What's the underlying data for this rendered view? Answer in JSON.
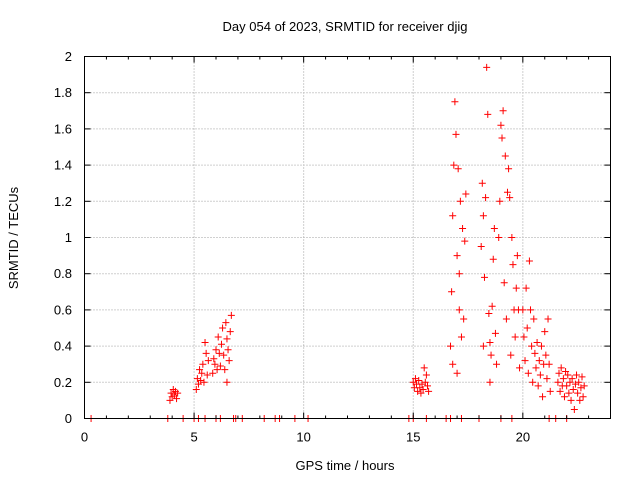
{
  "chart_data": {
    "type": "scatter",
    "title": "Day 054 of 2023, SRMTID for receiver djig",
    "xlabel": "GPS time / hours",
    "ylabel": "SRMTID / TECUs",
    "xlim": [
      0,
      24
    ],
    "ylim": [
      0,
      2
    ],
    "xticks": [
      0,
      5,
      10,
      15,
      20
    ],
    "xtick_labels": [
      "0",
      "5",
      "10",
      "15",
      "20"
    ],
    "yticks": [
      0,
      0.2,
      0.4,
      0.6,
      0.8,
      1,
      1.2,
      1.4,
      1.6,
      1.8,
      2
    ],
    "ytick_labels": [
      "0",
      "0.2",
      "0.4",
      "0.6",
      "0.8",
      "1",
      "1.2",
      "1.4",
      "1.6",
      "1.8",
      "2"
    ],
    "grid": true,
    "marker": "+",
    "color": "#ff0000",
    "series": [
      {
        "name": "SRMTID",
        "points": [
          [
            0.3,
            0.0
          ],
          [
            3.8,
            0.0
          ],
          [
            4.5,
            0.0
          ],
          [
            5.0,
            0.0
          ],
          [
            5.2,
            0.0
          ],
          [
            5.5,
            0.0
          ],
          [
            6.0,
            0.0
          ],
          [
            6.2,
            0.0
          ],
          [
            6.8,
            0.0
          ],
          [
            6.9,
            0.0
          ],
          [
            7.2,
            0.0
          ],
          [
            8.2,
            0.0
          ],
          [
            8.7,
            0.0
          ],
          [
            8.9,
            0.0
          ],
          [
            9.6,
            0.0
          ],
          [
            10.2,
            0.0
          ],
          [
            14.8,
            0.0
          ],
          [
            15.0,
            0.0
          ],
          [
            15.6,
            0.0
          ],
          [
            16.5,
            0.0
          ],
          [
            16.7,
            0.0
          ],
          [
            17.2,
            0.0
          ],
          [
            18.0,
            0.0
          ],
          [
            19.0,
            0.0
          ],
          [
            19.5,
            0.0
          ],
          [
            21.2,
            0.0
          ],
          [
            21.5,
            0.0
          ],
          [
            22.0,
            0.0
          ],
          [
            3.9,
            0.1
          ],
          [
            3.95,
            0.14
          ],
          [
            4.0,
            0.12
          ],
          [
            4.05,
            0.16
          ],
          [
            4.1,
            0.13
          ],
          [
            4.15,
            0.15
          ],
          [
            4.2,
            0.11
          ],
          [
            4.25,
            0.14
          ],
          [
            5.1,
            0.16
          ],
          [
            5.15,
            0.22
          ],
          [
            5.2,
            0.19
          ],
          [
            5.25,
            0.27
          ],
          [
            5.3,
            0.21
          ],
          [
            5.35,
            0.25
          ],
          [
            5.4,
            0.3
          ],
          [
            5.45,
            0.2
          ],
          [
            5.5,
            0.42
          ],
          [
            5.55,
            0.36
          ],
          [
            5.6,
            0.24
          ],
          [
            5.65,
            0.32
          ],
          [
            5.85,
            0.25
          ],
          [
            5.9,
            0.33
          ],
          [
            5.95,
            0.3
          ],
          [
            6.0,
            0.38
          ],
          [
            6.05,
            0.27
          ],
          [
            6.1,
            0.45
          ],
          [
            6.15,
            0.36
          ],
          [
            6.2,
            0.29
          ],
          [
            6.25,
            0.41
          ],
          [
            6.3,
            0.5
          ],
          [
            6.35,
            0.35
          ],
          [
            6.4,
            0.27
          ],
          [
            6.45,
            0.53
          ],
          [
            6.5,
            0.44
          ],
          [
            6.55,
            0.38
          ],
          [
            6.6,
            0.32
          ],
          [
            6.65,
            0.48
          ],
          [
            6.7,
            0.57
          ],
          [
            6.5,
            0.2
          ],
          [
            15.0,
            0.2
          ],
          [
            15.05,
            0.17
          ],
          [
            15.1,
            0.22
          ],
          [
            15.15,
            0.19
          ],
          [
            15.2,
            0.15
          ],
          [
            15.25,
            0.21
          ],
          [
            15.3,
            0.17
          ],
          [
            15.35,
            0.14
          ],
          [
            15.4,
            0.19
          ],
          [
            15.45,
            0.16
          ],
          [
            15.5,
            0.28
          ],
          [
            15.55,
            0.2
          ],
          [
            15.6,
            0.24
          ],
          [
            15.65,
            0.18
          ],
          [
            15.7,
            0.15
          ],
          [
            16.7,
            0.4
          ],
          [
            16.75,
            0.7
          ],
          [
            16.8,
            1.12
          ],
          [
            16.85,
            1.4
          ],
          [
            16.9,
            1.75
          ],
          [
            16.95,
            1.57
          ],
          [
            17.0,
            0.9
          ],
          [
            17.05,
            1.38
          ],
          [
            17.1,
            0.6
          ],
          [
            17.15,
            1.2
          ],
          [
            17.2,
            0.45
          ],
          [
            17.25,
            1.05
          ],
          [
            17.3,
            0.55
          ],
          [
            17.35,
            0.98
          ],
          [
            17.4,
            1.24
          ],
          [
            16.8,
            0.3
          ],
          [
            17.0,
            0.25
          ],
          [
            17.1,
            0.8
          ],
          [
            18.1,
            0.95
          ],
          [
            18.15,
            1.3
          ],
          [
            18.2,
            1.12
          ],
          [
            18.25,
            0.78
          ],
          [
            18.3,
            1.22
          ],
          [
            18.35,
            1.94
          ],
          [
            18.4,
            1.68
          ],
          [
            18.45,
            0.58
          ],
          [
            18.5,
            0.42
          ],
          [
            18.55,
            0.35
          ],
          [
            18.6,
            0.62
          ],
          [
            18.65,
            0.88
          ],
          [
            18.7,
            1.05
          ],
          [
            18.75,
            0.47
          ],
          [
            18.8,
            0.3
          ],
          [
            18.2,
            0.4
          ],
          [
            18.5,
            0.2
          ],
          [
            18.9,
            1.0
          ],
          [
            18.95,
            1.2
          ],
          [
            19.0,
            1.62
          ],
          [
            19.05,
            1.55
          ],
          [
            19.1,
            1.7
          ],
          [
            19.15,
            0.75
          ],
          [
            19.2,
            1.45
          ],
          [
            19.25,
            0.55
          ],
          [
            19.3,
            1.25
          ],
          [
            19.35,
            1.38
          ],
          [
            19.4,
            1.22
          ],
          [
            19.45,
            0.35
          ],
          [
            19.5,
            1.0
          ],
          [
            19.55,
            0.85
          ],
          [
            19.6,
            0.6
          ],
          [
            19.65,
            0.45
          ],
          [
            19.7,
            0.72
          ],
          [
            19.75,
            0.9
          ],
          [
            19.8,
            0.6
          ],
          [
            19.85,
            0.28
          ],
          [
            20.0,
            0.6
          ],
          [
            20.05,
            0.45
          ],
          [
            20.1,
            0.32
          ],
          [
            20.15,
            0.72
          ],
          [
            20.2,
            0.5
          ],
          [
            20.25,
            0.25
          ],
          [
            20.3,
            0.87
          ],
          [
            20.35,
            0.6
          ],
          [
            20.4,
            0.4
          ],
          [
            20.45,
            0.2
          ],
          [
            20.5,
            0.55
          ],
          [
            20.55,
            0.36
          ],
          [
            20.6,
            0.28
          ],
          [
            20.65,
            0.42
          ],
          [
            20.7,
            0.18
          ],
          [
            20.75,
            0.32
          ],
          [
            20.8,
            0.24
          ],
          [
            20.85,
            0.4
          ],
          [
            20.9,
            0.12
          ],
          [
            20.95,
            0.3
          ],
          [
            21.0,
            0.48
          ],
          [
            21.05,
            0.35
          ],
          [
            21.1,
            0.22
          ],
          [
            21.15,
            0.55
          ],
          [
            21.2,
            0.3
          ],
          [
            21.25,
            0.15
          ],
          [
            21.6,
            0.2
          ],
          [
            21.65,
            0.25
          ],
          [
            21.7,
            0.15
          ],
          [
            21.75,
            0.28
          ],
          [
            21.8,
            0.18
          ],
          [
            21.85,
            0.22
          ],
          [
            21.9,
            0.12
          ],
          [
            21.95,
            0.26
          ],
          [
            22.0,
            0.18
          ],
          [
            22.05,
            0.24
          ],
          [
            22.1,
            0.14
          ],
          [
            22.15,
            0.2
          ],
          [
            22.2,
            0.1
          ],
          [
            22.25,
            0.22
          ],
          [
            22.3,
            0.16
          ],
          [
            22.35,
            0.05
          ],
          [
            22.4,
            0.19
          ],
          [
            22.45,
            0.24
          ],
          [
            22.5,
            0.14
          ],
          [
            22.55,
            0.2
          ],
          [
            22.6,
            0.1
          ],
          [
            22.65,
            0.17
          ],
          [
            22.7,
            0.23
          ],
          [
            22.75,
            0.12
          ],
          [
            22.8,
            0.18
          ]
        ]
      }
    ]
  }
}
